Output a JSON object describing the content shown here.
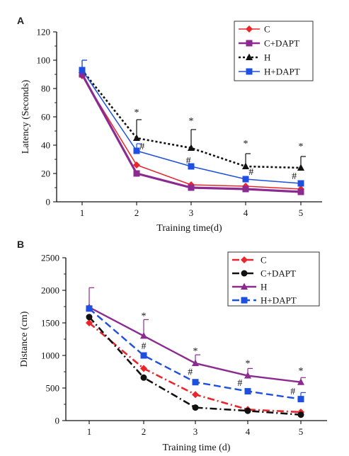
{
  "chart_data": [
    {
      "panel": "A",
      "type": "line",
      "x": [
        1,
        2,
        3,
        4,
        5
      ],
      "xlabel": "Training time(d)",
      "ylabel": "Latency (Seconds)",
      "ylim": [
        0,
        120
      ],
      "yticks": [
        0,
        20,
        40,
        60,
        80,
        100,
        120
      ],
      "legend_position": "top-right",
      "grid": false,
      "series": [
        {
          "name": "C",
          "color": "#e8262b",
          "marker": "diamond",
          "dash": "solid",
          "width": 1.5,
          "values": [
            89,
            26,
            12,
            11,
            9
          ],
          "errors": [
            0,
            0,
            0,
            0,
            0
          ]
        },
        {
          "name": "C+DAPT",
          "color": "#8b2b8f",
          "marker": "square",
          "dash": "solid",
          "width": 3.2,
          "values": [
            90,
            20,
            10,
            9,
            7
          ],
          "errors": [
            0,
            0,
            0,
            0,
            0
          ]
        },
        {
          "name": "H",
          "color": "#111111",
          "marker": "triangle",
          "dash": "dotted",
          "width": 2.6,
          "values": [
            93,
            45,
            38,
            25,
            24
          ],
          "errors": [
            7,
            13,
            13,
            9,
            8
          ]
        },
        {
          "name": "H+DAPT",
          "color": "#1f4fe0",
          "marker": "square",
          "dash": "solid",
          "width": 1.5,
          "values": [
            93,
            36,
            25,
            16,
            13
          ],
          "errors": [
            7,
            5,
            0,
            0,
            0
          ]
        }
      ],
      "annotations": [
        {
          "x": 2,
          "y": 61,
          "text": "*"
        },
        {
          "x": 3,
          "y": 55,
          "text": "*"
        },
        {
          "x": 4,
          "y": 39,
          "text": "*"
        },
        {
          "x": 5,
          "y": 37,
          "text": "*"
        },
        {
          "x": 2.1,
          "y": 37,
          "text": "#"
        },
        {
          "x": 2.95,
          "y": 27,
          "text": "#"
        },
        {
          "x": 4.1,
          "y": 19,
          "text": "#"
        },
        {
          "x": 4.88,
          "y": 16,
          "text": "#"
        }
      ]
    },
    {
      "panel": "B",
      "type": "line",
      "x": [
        1,
        2,
        3,
        4,
        5
      ],
      "xlabel": "Training time (d)",
      "ylabel": "Distance (cm)",
      "ylim": [
        0,
        2500
      ],
      "yticks": [
        0,
        500,
        1000,
        1500,
        2000,
        2500
      ],
      "legend_position": "top-right",
      "grid": false,
      "series": [
        {
          "name": "C",
          "color": "#e8262b",
          "marker": "diamond",
          "dash": "dashdot",
          "width": 2.6,
          "values": [
            1500,
            800,
            400,
            170,
            130
          ],
          "errors": [
            0,
            0,
            0,
            0,
            0
          ]
        },
        {
          "name": "C+DAPT",
          "color": "#111111",
          "marker": "circle",
          "dash": "dashdot",
          "width": 2.6,
          "values": [
            1590,
            660,
            200,
            150,
            90
          ],
          "errors": [
            0,
            0,
            0,
            0,
            0
          ]
        },
        {
          "name": "H",
          "color": "#8b2b8f",
          "marker": "triangle",
          "dash": "solid",
          "width": 2.4,
          "values": [
            1740,
            1300,
            880,
            690,
            590
          ],
          "errors": [
            300,
            250,
            130,
            110,
            70
          ]
        },
        {
          "name": "H+DAPT",
          "color": "#1f4fe0",
          "marker": "square",
          "dash": "dashed",
          "width": 2.4,
          "values": [
            1720,
            1000,
            590,
            450,
            330
          ],
          "errors": [
            0,
            0,
            0,
            0,
            100
          ]
        }
      ],
      "annotations": [
        {
          "x": 2,
          "y": 1560,
          "text": "*"
        },
        {
          "x": 3,
          "y": 1020,
          "text": "*"
        },
        {
          "x": 4,
          "y": 830,
          "text": "*"
        },
        {
          "x": 5,
          "y": 720,
          "text": "*"
        },
        {
          "x": 2,
          "y": 1100,
          "text": "#"
        },
        {
          "x": 2.9,
          "y": 700,
          "text": "#"
        },
        {
          "x": 3.85,
          "y": 530,
          "text": "#"
        },
        {
          "x": 4.85,
          "y": 400,
          "text": "#"
        }
      ]
    }
  ]
}
